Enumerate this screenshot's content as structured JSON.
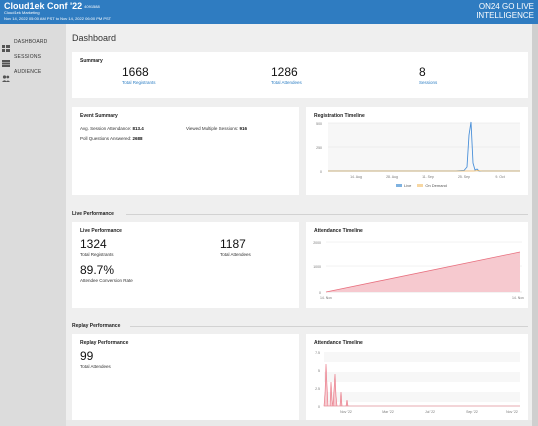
{
  "header": {
    "title": "Cloud1ek Conf '22",
    "event_id": "4091588",
    "org": "Cloud1ek Marketing",
    "dates": "Nov 14, 2022 05:00 AM PST to Nov 14, 2022 06:00 PM PST",
    "brand_line1": "ON24  GO LIVE",
    "brand_line2": "INTELLIGENCE",
    "color": "#2f7cc1"
  },
  "sidebar": {
    "items": [
      {
        "label": "DASHBOARD",
        "icon": "dashboard-icon"
      },
      {
        "label": "SESSIONS",
        "icon": "sessions-icon"
      },
      {
        "label": "AUDIENCE",
        "icon": "audience-icon"
      }
    ]
  },
  "page": {
    "title": "Dashboard"
  },
  "summary": {
    "title": "Summary",
    "metrics": [
      {
        "value": "1668",
        "label": "Total Registrants"
      },
      {
        "value": "1286",
        "label": "Total Attendees"
      },
      {
        "value": "8",
        "label": "Sessions"
      }
    ]
  },
  "event_summary": {
    "title": "Event Summary",
    "avg_attendance_label": "Avg. Session Attendance:",
    "avg_attendance_value": "813.4",
    "viewed_multiple_label": "Viewed Multiple Sessions:",
    "viewed_multiple_value": "916",
    "poll_label": "Poll Questions Answered:",
    "poll_value": "2688"
  },
  "registration_timeline": {
    "title": "Registration Timeline",
    "y_ticks": [
      "500",
      "250",
      "0"
    ],
    "x_ticks": [
      "14. Aug",
      "28. Aug",
      "11. Sep",
      "25. Sep",
      "9. Oct"
    ],
    "legend": [
      {
        "label": "Live",
        "color": "#7fb2e0"
      },
      {
        "label": "On Demand",
        "color": "#f7d7a3"
      }
    ]
  },
  "live_performance": {
    "section_label": "Live Performance",
    "title": "Live Performance",
    "registrants_value": "1324",
    "registrants_label": "Total Registrants",
    "attendees_value": "1187",
    "attendees_label": "Total Attendees",
    "conversion_value": "89.7%",
    "conversion_label": "Attendee Conversion Rate"
  },
  "live_attendance_timeline": {
    "title": "Attendance Timeline",
    "y_ticks": [
      "2000",
      "1000",
      "0"
    ],
    "x_ticks": [
      "14. Nov",
      "14. Nov"
    ]
  },
  "replay_performance": {
    "section_label": "Replay Performance",
    "title": "Replay Performance",
    "attendees_value": "99",
    "attendees_label": "Total Attendees"
  },
  "replay_attendance_timeline": {
    "title": "Attendance Timeline",
    "y_ticks": [
      "7.5",
      "5",
      "2.5",
      "0"
    ],
    "x_ticks": [
      "Nov '22",
      "Mar '22",
      "Jul '22",
      "Sep '22",
      "Nov '22"
    ]
  },
  "colors": {
    "accent": "#2f7cc1",
    "link": "#2e7fc4",
    "live_series": "#4a90d9",
    "ondemand_series": "#f0b860",
    "attendance_fill": "#f6c9cf",
    "attendance_line": "#e8707f"
  }
}
